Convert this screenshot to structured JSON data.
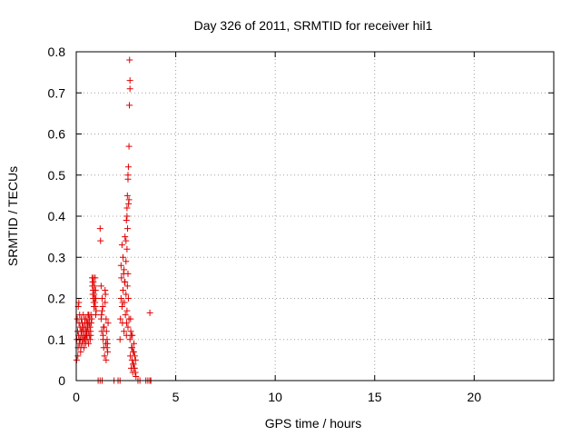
{
  "chart_data": {
    "type": "scatter",
    "title": "Day 326 of 2011, SRMTID for receiver hil1",
    "xlabel": "GPS time / hours",
    "ylabel": "SRMTID / TECUs",
    "xlim": [
      0,
      24
    ],
    "ylim": [
      0,
      0.8
    ],
    "xticks": [
      0,
      5,
      10,
      15,
      20
    ],
    "xtick_labels": [
      "0",
      "5",
      "10",
      "15",
      "20"
    ],
    "yticks": [
      0,
      0.1,
      0.2,
      0.3,
      0.4,
      0.5,
      0.6,
      0.7,
      0.8
    ],
    "ytick_labels": [
      "0",
      "0.1",
      "0.2",
      "0.3",
      "0.4",
      "0.5",
      "0.6",
      "0.7",
      "0.8"
    ],
    "grid": true,
    "marker": "+",
    "color": "#e00000",
    "series": [
      {
        "name": "SRMTID",
        "x": [
          0.03,
          0.05,
          0.07,
          0.09,
          0.1,
          0.12,
          0.14,
          0.15,
          0.17,
          0.19,
          0.2,
          0.22,
          0.24,
          0.25,
          0.27,
          0.29,
          0.3,
          0.32,
          0.34,
          0.35,
          0.37,
          0.39,
          0.4,
          0.42,
          0.44,
          0.45,
          0.47,
          0.49,
          0.5,
          0.52,
          0.54,
          0.55,
          0.57,
          0.59,
          0.6,
          0.62,
          0.64,
          0.65,
          0.67,
          0.69,
          0.7,
          0.72,
          0.74,
          0.75,
          0.02,
          0.08,
          0.13,
          0.18,
          0.23,
          0.28,
          0.33,
          0.38,
          0.43,
          0.48,
          0.53,
          0.58,
          0.63,
          0.68,
          0.73,
          0.78,
          0.8,
          0.82,
          0.84,
          0.85,
          0.87,
          0.89,
          0.9,
          0.92,
          0.94,
          0.95,
          0.97,
          0.99,
          1.0,
          0.81,
          0.83,
          0.86,
          0.88,
          0.91,
          0.93,
          0.96,
          0.98,
          1.2,
          1.22,
          1.25,
          1.28,
          1.3,
          1.33,
          1.35,
          1.38,
          1.4,
          1.42,
          1.45,
          1.48,
          1.5,
          1.52,
          1.55,
          1.58,
          1.6,
          1.25,
          1.3,
          1.35,
          1.45,
          1.5,
          1.55,
          1.27,
          1.37,
          1.47,
          1.57,
          2.2,
          2.22,
          2.25,
          2.27,
          2.3,
          2.32,
          2.35,
          2.38,
          2.4,
          2.42,
          2.45,
          2.47,
          2.5,
          2.52,
          2.55,
          2.57,
          2.6,
          2.62,
          2.65,
          2.25,
          2.3,
          2.35,
          2.4,
          2.45,
          2.5,
          2.55,
          2.6,
          2.33,
          2.43,
          2.53,
          2.5,
          2.52,
          2.55,
          2.57,
          2.6,
          2.62,
          2.65,
          2.67,
          2.7,
          2.55,
          2.6,
          2.65,
          2.7,
          2.58,
          2.63,
          2.68,
          2.7,
          2.72,
          2.74,
          2.76,
          2.78,
          2.8,
          2.82,
          2.84,
          2.86,
          2.88,
          2.9,
          2.92,
          2.94,
          2.96,
          2.98,
          3.0,
          2.73,
          2.77,
          2.81,
          2.85,
          2.89,
          2.93,
          2.97,
          3.7,
          1.1,
          1.2,
          1.3,
          1.9,
          2.1,
          2.2,
          3.1,
          3.2,
          3.5,
          3.6,
          3.7,
          3.75
        ],
        "y": [
          0.1,
          0.15,
          0.12,
          0.08,
          0.18,
          0.11,
          0.14,
          0.09,
          0.16,
          0.13,
          0.1,
          0.07,
          0.12,
          0.15,
          0.11,
          0.09,
          0.14,
          0.1,
          0.13,
          0.16,
          0.12,
          0.08,
          0.11,
          0.14,
          0.1,
          0.13,
          0.09,
          0.12,
          0.15,
          0.11,
          0.14,
          0.1,
          0.13,
          0.16,
          0.12,
          0.09,
          0.14,
          0.11,
          0.15,
          0.13,
          0.1,
          0.12,
          0.16,
          0.14,
          0.05,
          0.06,
          0.19,
          0.1,
          0.08,
          0.12,
          0.13,
          0.1,
          0.15,
          0.11,
          0.12,
          0.14,
          0.16,
          0.13,
          0.11,
          0.15,
          0.25,
          0.24,
          0.22,
          0.2,
          0.25,
          0.18,
          0.21,
          0.23,
          0.19,
          0.25,
          0.22,
          0.2,
          0.17,
          0.23,
          0.21,
          0.24,
          0.19,
          0.22,
          0.2,
          0.18,
          0.16,
          0.37,
          0.34,
          0.15,
          0.12,
          0.2,
          0.18,
          0.1,
          0.08,
          0.13,
          0.06,
          0.22,
          0.09,
          0.05,
          0.12,
          0.1,
          0.07,
          0.14,
          0.23,
          0.17,
          0.11,
          0.19,
          0.15,
          0.08,
          0.16,
          0.13,
          0.21,
          0.09,
          0.1,
          0.15,
          0.2,
          0.25,
          0.18,
          0.14,
          0.22,
          0.26,
          0.12,
          0.19,
          0.24,
          0.16,
          0.21,
          0.11,
          0.17,
          0.23,
          0.13,
          0.2,
          0.15,
          0.28,
          0.33,
          0.3,
          0.27,
          0.35,
          0.29,
          0.32,
          0.26,
          0.19,
          0.24,
          0.14,
          0.34,
          0.39,
          0.42,
          0.45,
          0.49,
          0.52,
          0.57,
          0.67,
          0.73,
          0.4,
          0.5,
          0.44,
          0.71,
          0.37,
          0.43,
          0.78,
          0.1,
          0.06,
          0.12,
          0.03,
          0.08,
          0.05,
          0.11,
          0.02,
          0.07,
          0.04,
          0.09,
          0.03,
          0.06,
          0.02,
          0.05,
          0.01,
          0.15,
          0.11,
          0.08,
          0.04,
          0.07,
          0.03,
          0.02,
          0.165,
          0.0,
          0.0,
          0.0,
          0.0,
          0.0,
          0.0,
          0.0,
          0.0,
          0.0,
          0.0,
          0.0,
          0.0
        ]
      }
    ]
  }
}
